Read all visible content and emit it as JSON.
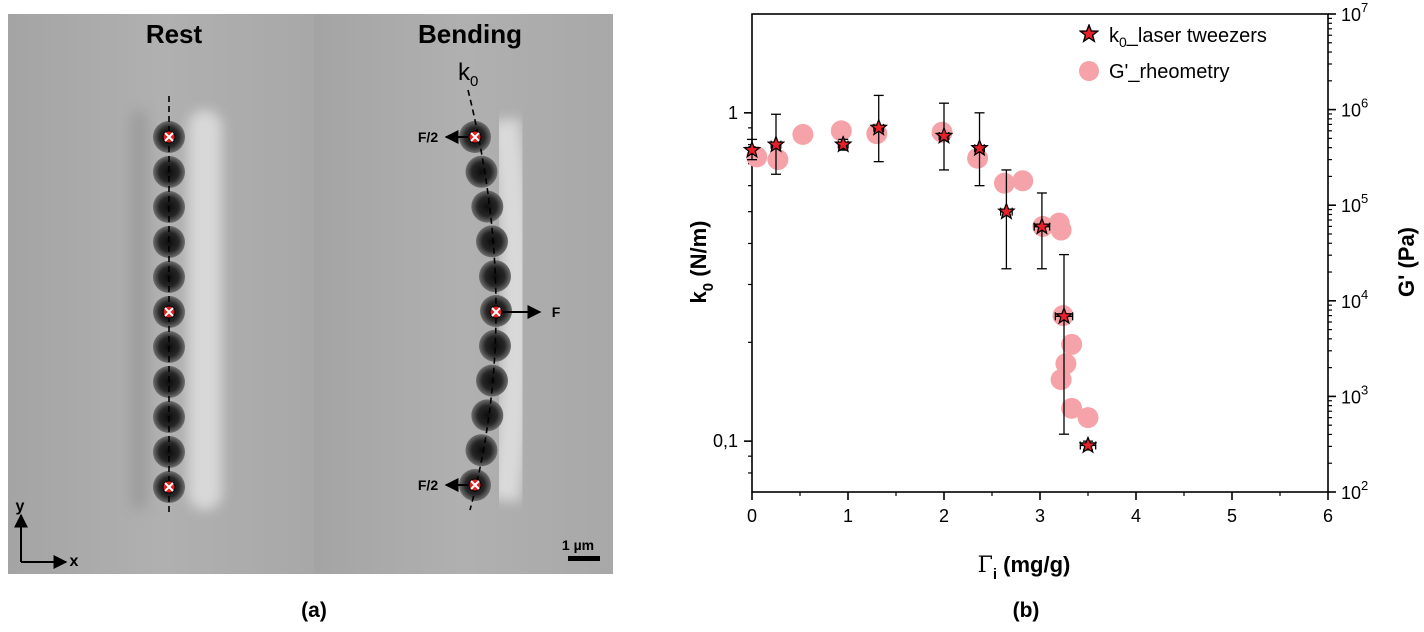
{
  "panel_a": {
    "caption": "(a)",
    "rest_label": "Rest",
    "bending_label": "Bending",
    "k0_label": "k",
    "k0_sub": "0",
    "force_half_top": "F/2",
    "force_mid": "F",
    "force_half_bottom": "F/2",
    "axis_y": "y",
    "axis_x": "x",
    "scale_label": "1 µm",
    "colors": {
      "marker": "#e02020",
      "bead": "#1a1a1a",
      "background": "#a8a8a8"
    }
  },
  "panel_b": {
    "caption": "(b)"
  },
  "chart_data": {
    "type": "scatter",
    "xlabel_symbol": "Γ",
    "xlabel_sub": "i",
    "xlabel_unit": " (mg/g)",
    "ylabel_symbol": "k",
    "ylabel_sub": "0",
    "ylabel_unit": " (N/m)",
    "y2label": "G' (Pa)",
    "xlim": [
      0,
      6
    ],
    "ylim": [
      0.07,
      2
    ],
    "y_scale": "log",
    "y2lim": [
      100,
      10000000
    ],
    "y2_scale": "log",
    "x_ticks": [
      "0",
      "1",
      "2",
      "3",
      "4",
      "5",
      "6"
    ],
    "y_ticks": [
      {
        "value": 0.1,
        "label": "0,1"
      },
      {
        "value": 1,
        "label": "1"
      }
    ],
    "y2_ticks": [
      {
        "value": 100,
        "base": "10",
        "exp": "2"
      },
      {
        "value": 1000,
        "base": "10",
        "exp": "3"
      },
      {
        "value": 10000,
        "base": "10",
        "exp": "4"
      },
      {
        "value": 100000,
        "base": "10",
        "exp": "5"
      },
      {
        "value": 1000000,
        "base": "10",
        "exp": "6"
      },
      {
        "value": 10000000,
        "base": "10",
        "exp": "7"
      }
    ],
    "legend_position": "top-right",
    "series": [
      {
        "name": "k0_laser tweezers",
        "legend_main": "k",
        "legend_sub": "0",
        "legend_rest": "_laser tweezers",
        "axis": "left",
        "marker": "star",
        "color": "#e8202a",
        "points": [
          {
            "x": 0.0,
            "y": 0.77,
            "ylo": 0.72,
            "yhi": 0.83,
            "xerr": 0.03
          },
          {
            "x": 0.25,
            "y": 0.8,
            "ylo": 0.65,
            "yhi": 0.99,
            "xerr": 0.05
          },
          {
            "x": 0.95,
            "y": 0.8,
            "ylo": 0.77,
            "yhi": 0.83,
            "xerr": 0.05
          },
          {
            "x": 1.32,
            "y": 0.9,
            "ylo": 0.71,
            "yhi": 1.13,
            "xerr": 0.05
          },
          {
            "x": 2.0,
            "y": 0.85,
            "ylo": 0.67,
            "yhi": 1.07,
            "xerr": 0.05
          },
          {
            "x": 2.37,
            "y": 0.78,
            "ylo": 0.6,
            "yhi": 1.0,
            "xerr": 0.05
          },
          {
            "x": 2.65,
            "y": 0.5,
            "ylo": 0.335,
            "yhi": 0.67,
            "xerr": 0.06
          },
          {
            "x": 3.02,
            "y": 0.45,
            "ylo": 0.335,
            "yhi": 0.57,
            "xerr": 0.08
          },
          {
            "x": 3.25,
            "y": 0.24,
            "ylo": 0.105,
            "yhi": 0.37,
            "xerr": 0.09
          },
          {
            "x": 3.5,
            "y": 0.097,
            "ylo": 0.094,
            "yhi": 0.1,
            "xerr": 0.08
          }
        ]
      },
      {
        "name": "G'_rheometry",
        "axis": "right",
        "marker": "circle",
        "color": "#f5a3a8",
        "points": [
          {
            "x": 0.05,
            "y": 320000
          },
          {
            "x": 0.27,
            "y": 300000
          },
          {
            "x": 0.53,
            "y": 550000
          },
          {
            "x": 0.93,
            "y": 600000
          },
          {
            "x": 1.3,
            "y": 560000
          },
          {
            "x": 1.98,
            "y": 580000
          },
          {
            "x": 2.35,
            "y": 310000
          },
          {
            "x": 2.63,
            "y": 170000
          },
          {
            "x": 2.82,
            "y": 180000
          },
          {
            "x": 3.03,
            "y": 60000
          },
          {
            "x": 3.2,
            "y": 65000
          },
          {
            "x": 3.22,
            "y": 55000
          },
          {
            "x": 3.24,
            "y": 7000
          },
          {
            "x": 3.33,
            "y": 3500
          },
          {
            "x": 3.27,
            "y": 2200
          },
          {
            "x": 3.22,
            "y": 1500
          },
          {
            "x": 3.33,
            "y": 750
          },
          {
            "x": 3.5,
            "y": 600
          }
        ]
      }
    ]
  }
}
